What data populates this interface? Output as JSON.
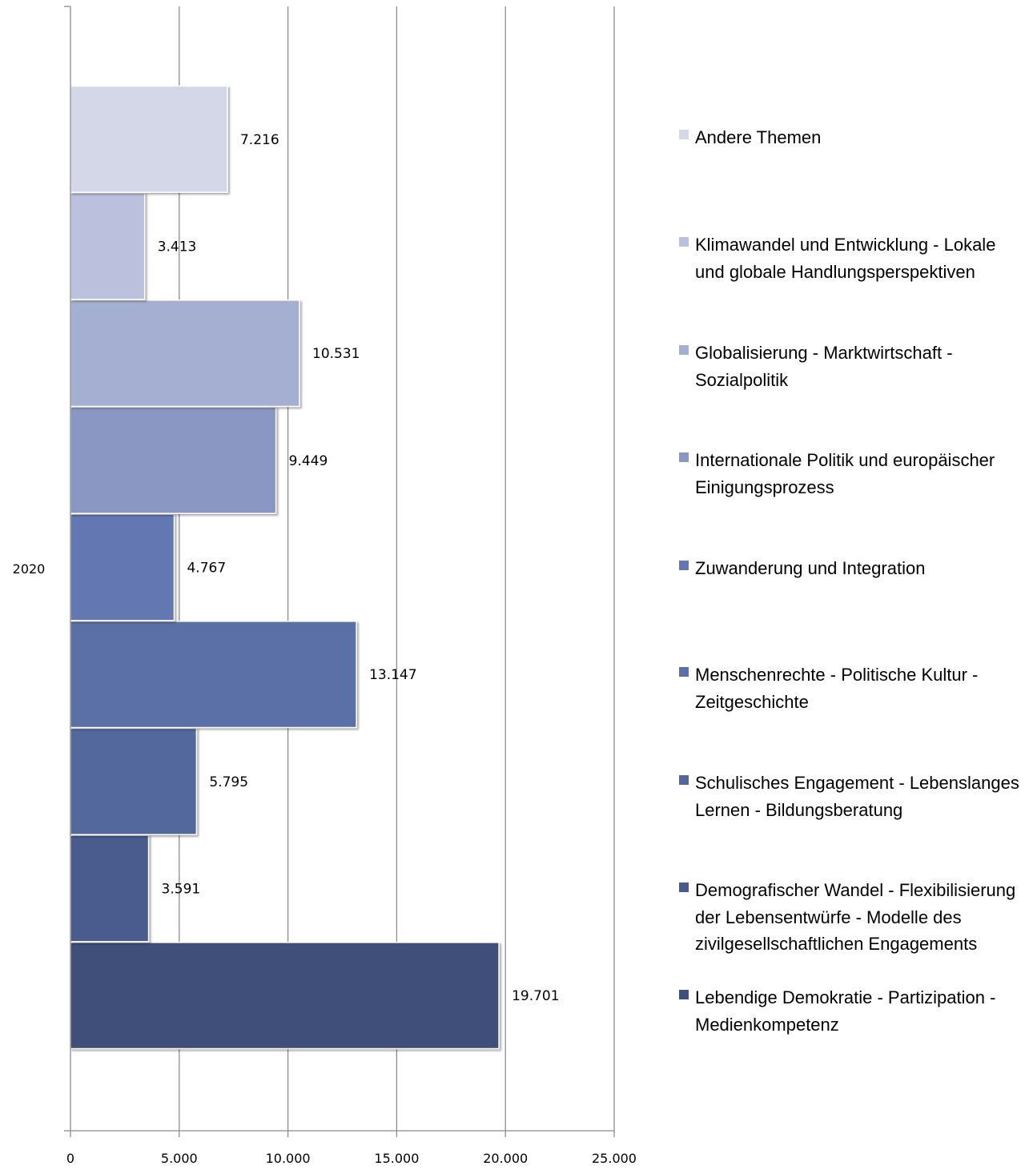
{
  "chart_data": {
    "type": "bar",
    "orientation": "horizontal",
    "categories": [
      "2020"
    ],
    "xlim": [
      0,
      25000
    ],
    "x_ticks": [
      "0",
      "5.000",
      "10.000",
      "15.000",
      "20.000",
      "25.000"
    ],
    "grid": "vertical",
    "legend_position": "right",
    "series": [
      {
        "name": "Lebendige Demokratie - Partizipation - Medienkompetenz",
        "values": [
          19701
        ],
        "label": "19.701",
        "color": "#3f5079"
      },
      {
        "name": "Demografischer Wandel - Flexibilisierung der Lebensentwürfe - Modelle des zivilgesellschaftlichen Engagements",
        "values": [
          3591
        ],
        "label": "3.591",
        "color": "#485b8d"
      },
      {
        "name": "Schulisches Engagement - Lebenslanges Lernen - Bildungsberatung",
        "values": [
          5795
        ],
        "label": "5.795",
        "color": "#53679d"
      },
      {
        "name": "Menschenrechte - Politische Kultur - Zeitgeschichte",
        "values": [
          13147
        ],
        "label": "13.147",
        "color": "#5b6fa8"
      },
      {
        "name": "Zuwanderung und Integration",
        "values": [
          4767
        ],
        "label": "4.767",
        "color": "#6477b3"
      },
      {
        "name": "Internationale Politik und europäischer Einigungsprozess",
        "values": [
          9449
        ],
        "label": "9.449",
        "color": "#8a97c3"
      },
      {
        "name": "Globalisierung - Marktwirtschaft - Sozialpolitik",
        "values": [
          10531
        ],
        "label": "10.531",
        "color": "#a5afd1"
      },
      {
        "name": "Klimawandel und Entwicklung - Lokale und globale Handlungsperspektiven",
        "values": [
          3413
        ],
        "label": "3.413",
        "color": "#bbc1dc"
      },
      {
        "name": "Andere Themen",
        "values": [
          7216
        ],
        "label": "7.216",
        "color": "#d3d7e8"
      }
    ]
  }
}
